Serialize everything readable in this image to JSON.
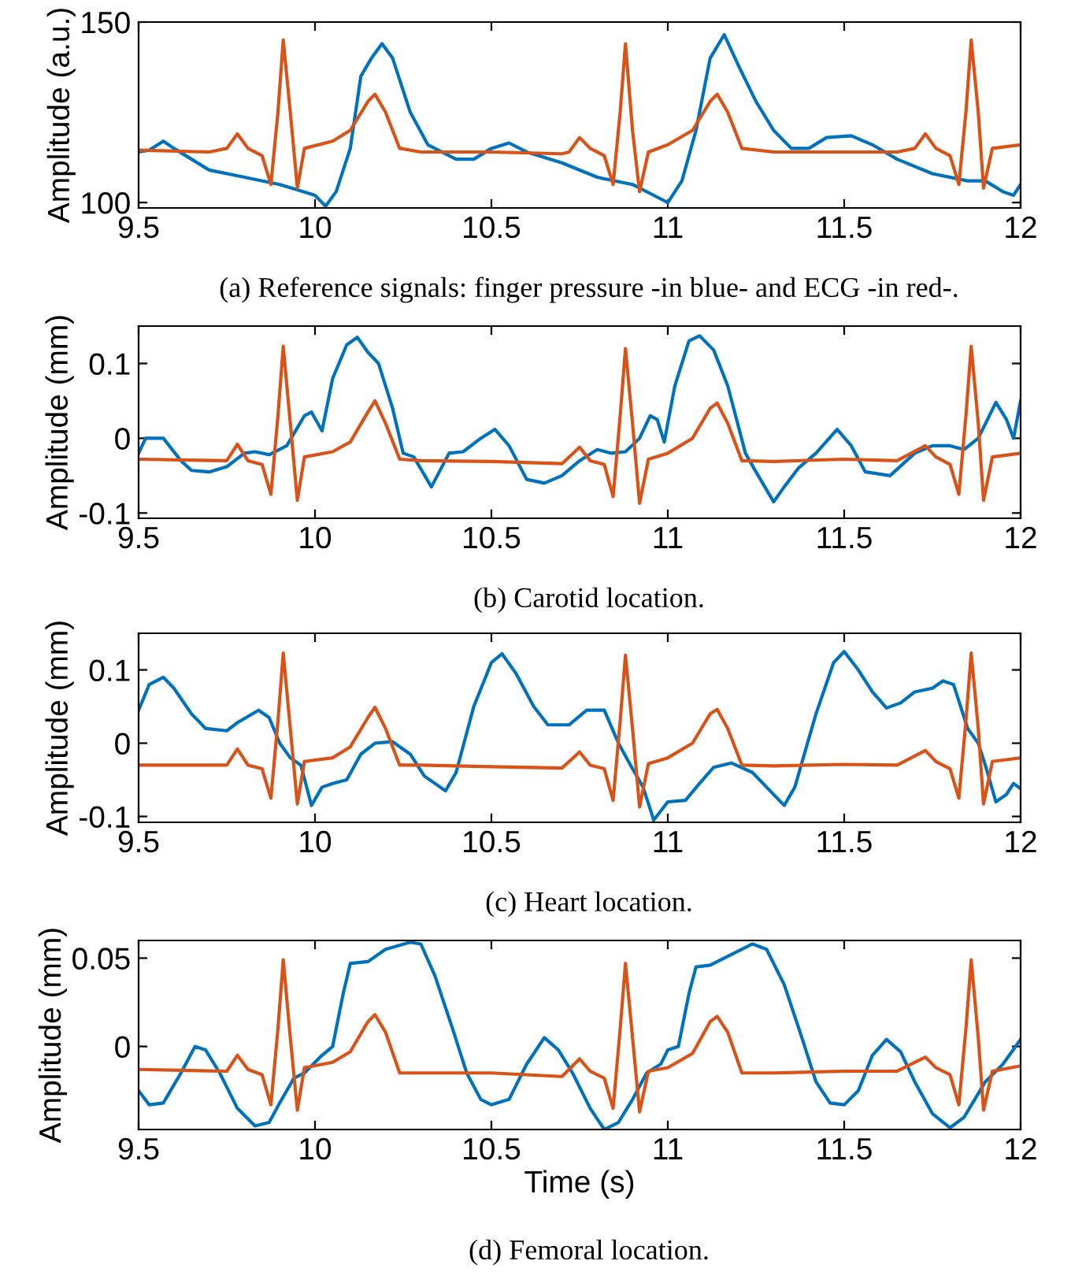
{
  "chart_data": [
    {
      "type": "line",
      "ylabel": "Amplitude (a.u.)",
      "xlim": [
        9.5,
        12
      ],
      "ylim": [
        98.5,
        150
      ],
      "xticks": [
        9.5,
        10,
        10.5,
        11,
        11.5,
        12
      ],
      "yticks": [
        100,
        150
      ],
      "annotations": [
        "(a) Reference signals: finger pressure -in blue- and ECG -in red-."
      ],
      "series": [
        {
          "color": "#0072bd",
          "x": [
            9.5,
            9.53,
            9.57,
            9.6,
            9.65,
            9.7,
            9.8,
            9.9,
            9.95,
            10.0,
            10.03,
            10.06,
            10.1,
            10.13,
            10.16,
            10.19,
            10.22,
            10.27,
            10.32,
            10.4,
            10.45,
            10.5,
            10.55,
            10.6,
            10.7,
            10.8,
            10.9,
            10.97,
            11.0,
            11.04,
            11.08,
            11.12,
            11.16,
            11.2,
            11.25,
            11.3,
            11.35,
            11.4,
            11.45,
            11.52,
            11.58,
            11.65,
            11.75,
            11.85,
            11.9,
            11.95,
            11.98,
            12
          ],
          "values": [
            114,
            114.5,
            117,
            115,
            112,
            109,
            107,
            105,
            103.5,
            102,
            99,
            103,
            115,
            135,
            140,
            144,
            140,
            125,
            116,
            112,
            112,
            115,
            116.5,
            114,
            111,
            107,
            105,
            101.5,
            100,
            106,
            120,
            140,
            146.5,
            138,
            128,
            120,
            115,
            115,
            118,
            118.5,
            116,
            112,
            108,
            106,
            106,
            103,
            102,
            105
          ]
        },
        {
          "color": "#d95319",
          "x": [
            9.5,
            9.7,
            9.75,
            9.78,
            9.81,
            9.85,
            9.875,
            9.895,
            9.91,
            9.93,
            9.95,
            9.97,
            10.05,
            10.1,
            10.15,
            10.17,
            10.2,
            10.24,
            10.3,
            10.5,
            10.7,
            10.72,
            10.75,
            10.78,
            10.82,
            10.845,
            10.865,
            10.88,
            10.9,
            10.92,
            10.945,
            11.0,
            11.07,
            11.12,
            11.14,
            11.17,
            11.21,
            11.3,
            11.5,
            11.65,
            11.7,
            11.73,
            11.76,
            11.8,
            11.825,
            11.845,
            11.86,
            11.88,
            11.895,
            11.92,
            12
          ],
          "values": [
            114.5,
            114,
            115,
            119,
            115,
            113,
            105,
            125,
            145,
            125,
            104,
            115,
            117,
            120,
            128,
            130,
            125,
            115,
            114,
            114,
            113.5,
            114,
            118,
            115,
            113,
            105,
            125,
            144,
            120,
            103,
            114,
            116,
            120,
            128,
            130,
            125,
            115,
            114,
            114,
            114,
            115,
            119,
            115,
            113,
            105,
            125,
            145,
            125,
            104,
            115,
            116
          ]
        }
      ]
    },
    {
      "type": "line",
      "ylabel": "Amplitude (mm)",
      "xlim": [
        9.5,
        12
      ],
      "ylim": [
        -0.107,
        0.15
      ],
      "xticks": [
        9.5,
        10,
        10.5,
        11,
        11.5,
        12
      ],
      "yticks": [
        -0.1,
        0,
        0.1
      ],
      "annotations": [
        "(b) Carotid location."
      ],
      "series": [
        {
          "color": "#0072bd",
          "x": [
            9.5,
            9.52,
            9.57,
            9.62,
            9.65,
            9.7,
            9.75,
            9.8,
            9.83,
            9.87,
            9.92,
            9.97,
            9.99,
            10.02,
            10.05,
            10.09,
            10.12,
            10.15,
            10.18,
            10.22,
            10.25,
            10.28,
            10.33,
            10.38,
            10.42,
            10.47,
            10.51,
            10.55,
            10.6,
            10.65,
            10.7,
            10.75,
            10.8,
            10.84,
            10.88,
            10.92,
            10.95,
            10.97,
            10.99,
            11.02,
            11.06,
            11.09,
            11.13,
            11.17,
            11.22,
            11.25,
            11.3,
            11.33,
            11.37,
            11.42,
            11.48,
            11.52,
            11.56,
            11.63,
            11.7,
            11.75,
            11.8,
            11.84,
            11.88,
            11.93,
            11.96,
            11.98,
            12
          ],
          "values": [
            -0.02,
            0.0,
            0.0,
            -0.03,
            -0.043,
            -0.045,
            -0.038,
            -0.02,
            -0.018,
            -0.022,
            -0.01,
            0.03,
            0.035,
            0.01,
            0.08,
            0.125,
            0.135,
            0.115,
            0.1,
            0.04,
            -0.02,
            -0.025,
            -0.065,
            -0.02,
            -0.018,
            0.0,
            0.012,
            -0.01,
            -0.055,
            -0.06,
            -0.05,
            -0.03,
            -0.015,
            -0.02,
            -0.018,
            0.0,
            0.03,
            0.025,
            -0.005,
            0.07,
            0.13,
            0.137,
            0.118,
            0.07,
            -0.02,
            -0.045,
            -0.085,
            -0.065,
            -0.04,
            -0.02,
            0.012,
            -0.01,
            -0.045,
            -0.05,
            -0.02,
            -0.01,
            -0.01,
            -0.015,
            0.0,
            0.048,
            0.025,
            0.0,
            0.05
          ]
        },
        {
          "color": "#d95319",
          "x": [
            9.5,
            9.75,
            9.78,
            9.81,
            9.85,
            9.875,
            9.895,
            9.91,
            9.93,
            9.95,
            9.97,
            10.05,
            10.1,
            10.15,
            10.17,
            10.2,
            10.24,
            10.3,
            10.5,
            10.7,
            10.75,
            10.78,
            10.82,
            10.845,
            10.865,
            10.88,
            10.9,
            10.92,
            10.945,
            11.0,
            11.07,
            11.12,
            11.14,
            11.17,
            11.21,
            11.3,
            11.5,
            11.65,
            11.73,
            11.76,
            11.8,
            11.825,
            11.845,
            11.86,
            11.88,
            11.895,
            11.92,
            12
          ],
          "values": [
            -0.028,
            -0.03,
            -0.008,
            -0.03,
            -0.035,
            -0.075,
            0.03,
            0.123,
            0.02,
            -0.083,
            -0.025,
            -0.018,
            -0.005,
            0.035,
            0.05,
            0.02,
            -0.028,
            -0.03,
            -0.031,
            -0.034,
            -0.012,
            -0.03,
            -0.035,
            -0.078,
            0.03,
            0.12,
            0.02,
            -0.087,
            -0.028,
            -0.02,
            0.0,
            0.04,
            0.047,
            0.02,
            -0.03,
            -0.031,
            -0.028,
            -0.03,
            -0.01,
            -0.025,
            -0.035,
            -0.075,
            0.03,
            0.123,
            0.02,
            -0.083,
            -0.025,
            -0.02
          ]
        }
      ]
    },
    {
      "type": "line",
      "ylabel": "Amplitude (mm)",
      "xlim": [
        9.5,
        12
      ],
      "ylim": [
        -0.108,
        0.15
      ],
      "xticks": [
        9.5,
        10,
        10.5,
        11,
        11.5,
        12
      ],
      "yticks": [
        -0.1,
        0,
        0.1
      ],
      "annotations": [
        "(c) Heart location."
      ],
      "series": [
        {
          "color": "#0072bd",
          "x": [
            9.5,
            9.53,
            9.57,
            9.6,
            9.65,
            9.69,
            9.75,
            9.78,
            9.84,
            9.87,
            9.9,
            9.93,
            9.96,
            9.99,
            10.02,
            10.05,
            10.09,
            10.13,
            10.17,
            10.22,
            10.27,
            10.31,
            10.37,
            10.4,
            10.45,
            10.5,
            10.53,
            10.57,
            10.62,
            10.66,
            10.72,
            10.77,
            10.82,
            10.86,
            10.9,
            10.93,
            10.96,
            11.0,
            11.05,
            11.09,
            11.13,
            11.18,
            11.24,
            11.28,
            11.33,
            11.36,
            11.42,
            11.47,
            11.5,
            11.54,
            11.58,
            11.62,
            11.66,
            11.7,
            11.75,
            11.78,
            11.81,
            11.85,
            11.88,
            11.9,
            11.93,
            11.96,
            11.98,
            12
          ],
          "values": [
            0.045,
            0.08,
            0.09,
            0.075,
            0.04,
            0.02,
            0.017,
            0.028,
            0.045,
            0.035,
            0.0,
            -0.02,
            -0.03,
            -0.085,
            -0.06,
            -0.055,
            -0.05,
            -0.015,
            0.0,
            0.002,
            -0.015,
            -0.045,
            -0.065,
            -0.04,
            0.05,
            0.11,
            0.122,
            0.095,
            0.05,
            0.025,
            0.025,
            0.045,
            0.045,
            0.0,
            -0.035,
            -0.06,
            -0.105,
            -0.08,
            -0.078,
            -0.055,
            -0.033,
            -0.027,
            -0.04,
            -0.06,
            -0.085,
            -0.06,
            0.04,
            0.11,
            0.125,
            0.1,
            0.07,
            0.048,
            0.055,
            0.07,
            0.075,
            0.085,
            0.08,
            0.02,
            0.0,
            -0.03,
            -0.08,
            -0.07,
            -0.055,
            -0.062
          ]
        },
        {
          "color": "#d95319",
          "x": [
            9.5,
            9.75,
            9.78,
            9.81,
            9.85,
            9.875,
            9.895,
            9.91,
            9.93,
            9.95,
            9.97,
            10.05,
            10.1,
            10.15,
            10.17,
            10.2,
            10.24,
            10.3,
            10.5,
            10.7,
            10.75,
            10.78,
            10.82,
            10.845,
            10.865,
            10.88,
            10.9,
            10.92,
            10.945,
            11.0,
            11.07,
            11.12,
            11.14,
            11.17,
            11.21,
            11.3,
            11.5,
            11.65,
            11.73,
            11.76,
            11.8,
            11.825,
            11.845,
            11.86,
            11.88,
            11.895,
            11.92,
            12
          ],
          "values": [
            -0.03,
            -0.03,
            -0.008,
            -0.03,
            -0.035,
            -0.075,
            0.03,
            0.123,
            0.02,
            -0.083,
            -0.025,
            -0.02,
            -0.005,
            0.035,
            0.049,
            0.02,
            -0.03,
            -0.03,
            -0.032,
            -0.034,
            -0.012,
            -0.03,
            -0.035,
            -0.078,
            0.03,
            0.12,
            0.02,
            -0.087,
            -0.028,
            -0.02,
            0.0,
            0.04,
            0.046,
            0.02,
            -0.03,
            -0.031,
            -0.029,
            -0.03,
            -0.01,
            -0.025,
            -0.035,
            -0.075,
            0.03,
            0.123,
            0.02,
            -0.083,
            -0.025,
            -0.02
          ]
        }
      ]
    },
    {
      "type": "line",
      "ylabel": "Amplitude (mm)",
      "xlabel": "Time (s)",
      "xlim": [
        9.5,
        12
      ],
      "ylim": [
        -0.047,
        0.06
      ],
      "xticks": [
        9.5,
        10,
        10.5,
        11,
        11.5,
        12
      ],
      "yticks": [
        0,
        0.05
      ],
      "annotations": [
        "(d) Femoral location."
      ],
      "series": [
        {
          "color": "#0072bd",
          "x": [
            9.5,
            9.53,
            9.57,
            9.62,
            9.66,
            9.69,
            9.73,
            9.78,
            9.83,
            9.87,
            9.9,
            9.94,
            9.97,
            10.02,
            10.05,
            10.08,
            10.1,
            10.15,
            10.2,
            10.27,
            10.3,
            10.34,
            10.39,
            10.43,
            10.47,
            10.5,
            10.55,
            10.6,
            10.65,
            10.69,
            10.73,
            10.78,
            10.82,
            10.86,
            10.9,
            10.94,
            10.98,
            11.0,
            11.03,
            11.06,
            11.08,
            11.12,
            11.18,
            11.24,
            11.28,
            11.33,
            11.38,
            11.42,
            11.46,
            11.5,
            11.54,
            11.58,
            11.62,
            11.66,
            11.7,
            11.75,
            11.8,
            11.84,
            11.87,
            11.9,
            11.95,
            12
          ],
          "values": [
            -0.025,
            -0.033,
            -0.032,
            -0.015,
            0.0,
            -0.002,
            -0.015,
            -0.035,
            -0.045,
            -0.043,
            -0.032,
            -0.018,
            -0.015,
            -0.005,
            0.0,
            0.03,
            0.047,
            0.048,
            0.055,
            0.059,
            0.058,
            0.04,
            0.01,
            -0.015,
            -0.03,
            -0.033,
            -0.03,
            -0.01,
            0.005,
            -0.002,
            -0.015,
            -0.035,
            -0.047,
            -0.043,
            -0.03,
            -0.015,
            -0.01,
            -0.002,
            0.0,
            0.03,
            0.045,
            0.046,
            0.052,
            0.058,
            0.055,
            0.035,
            0.005,
            -0.02,
            -0.032,
            -0.033,
            -0.025,
            -0.005,
            0.004,
            -0.003,
            -0.02,
            -0.038,
            -0.046,
            -0.04,
            -0.03,
            -0.02,
            -0.01,
            0.004
          ]
        },
        {
          "color": "#d95319",
          "x": [
            9.5,
            9.75,
            9.78,
            9.81,
            9.85,
            9.875,
            9.895,
            9.91,
            9.93,
            9.95,
            9.97,
            10.05,
            10.1,
            10.15,
            10.17,
            10.2,
            10.24,
            10.3,
            10.5,
            10.7,
            10.75,
            10.78,
            10.82,
            10.845,
            10.865,
            10.88,
            10.9,
            10.92,
            10.945,
            11.0,
            11.07,
            11.12,
            11.14,
            11.17,
            11.21,
            11.3,
            11.5,
            11.65,
            11.73,
            11.76,
            11.8,
            11.825,
            11.845,
            11.86,
            11.88,
            11.895,
            11.92,
            12
          ],
          "values": [
            -0.013,
            -0.014,
            -0.005,
            -0.013,
            -0.016,
            -0.033,
            0.01,
            0.049,
            0.005,
            -0.036,
            -0.012,
            -0.009,
            -0.003,
            0.014,
            0.018,
            0.008,
            -0.015,
            -0.015,
            -0.015,
            -0.017,
            -0.007,
            -0.014,
            -0.018,
            -0.035,
            0.01,
            0.047,
            0.005,
            -0.037,
            -0.014,
            -0.012,
            -0.004,
            0.014,
            0.017,
            0.008,
            -0.015,
            -0.015,
            -0.014,
            -0.014,
            -0.006,
            -0.012,
            -0.016,
            -0.033,
            0.01,
            0.049,
            0.005,
            -0.036,
            -0.014,
            -0.011
          ]
        }
      ]
    }
  ]
}
